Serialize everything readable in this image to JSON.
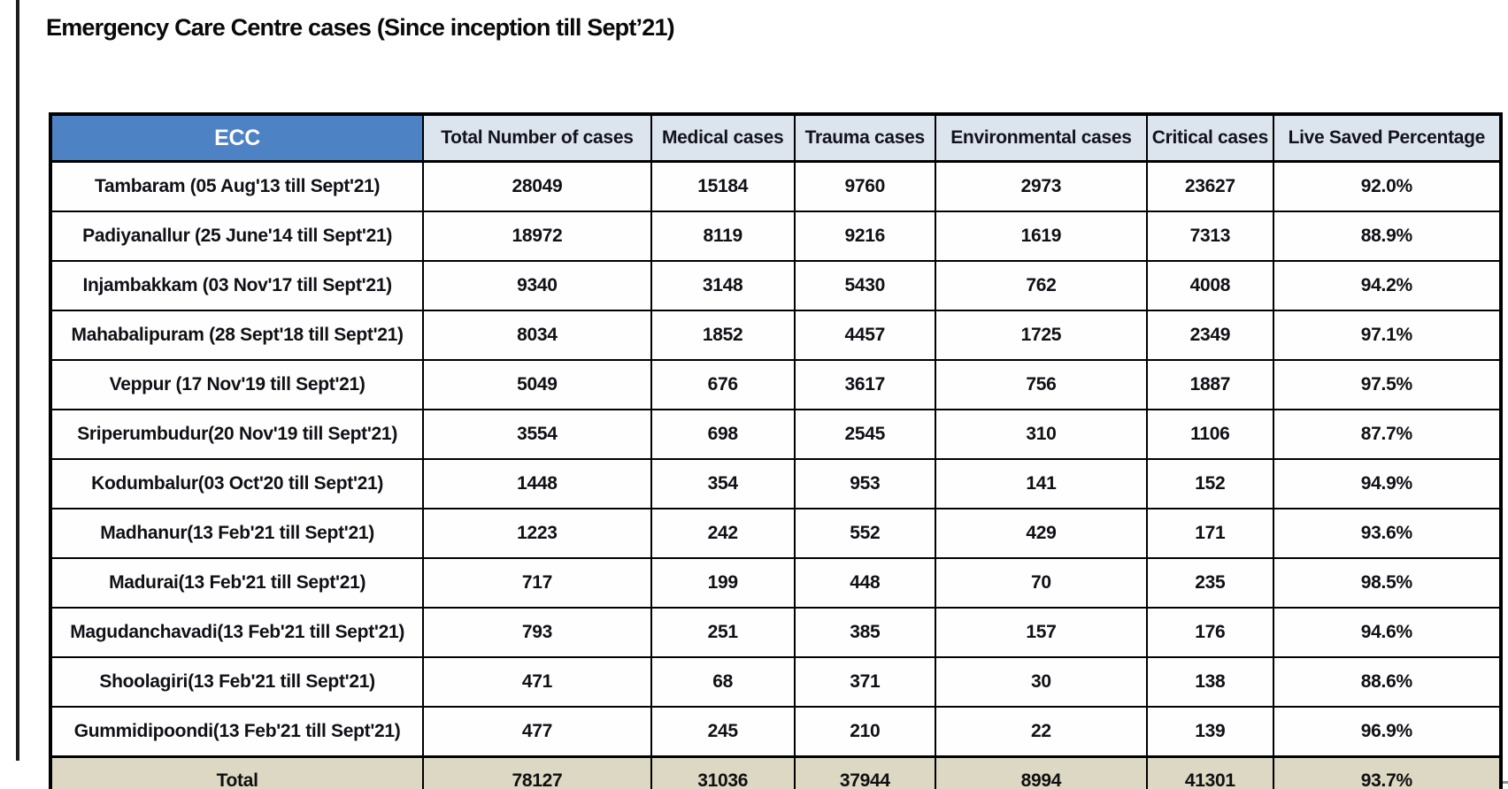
{
  "page": {
    "title": "Emergency Care Centre cases (Since inception till Sept’21)"
  },
  "table": {
    "columns": [
      "ECC",
      "Total Number of cases",
      "Medical cases",
      "Trauma cases",
      "Environmental cases",
      "Critical cases",
      "Live Saved Percentage"
    ],
    "rows": [
      {
        "ecc": "Tambaram (05 Aug'13 till Sept'21)",
        "values": [
          "28049",
          "15184",
          "9760",
          "2973",
          "23627",
          "92.0%"
        ]
      },
      {
        "ecc": "Padiyanallur (25 June'14 till Sept'21)",
        "values": [
          "18972",
          "8119",
          "9216",
          "1619",
          "7313",
          "88.9%"
        ]
      },
      {
        "ecc": "Injambakkam (03 Nov'17 till Sept'21)",
        "values": [
          "9340",
          "3148",
          "5430",
          "762",
          "4008",
          "94.2%"
        ]
      },
      {
        "ecc": "Mahabalipuram (28 Sept'18 till Sept'21)",
        "values": [
          "8034",
          "1852",
          "4457",
          "1725",
          "2349",
          "97.1%"
        ]
      },
      {
        "ecc": "Veppur (17 Nov'19 till Sept'21)",
        "values": [
          "5049",
          "676",
          "3617",
          "756",
          "1887",
          "97.5%"
        ]
      },
      {
        "ecc": "Sriperumbudur(20 Nov'19 till Sept'21)",
        "values": [
          "3554",
          "698",
          "2545",
          "310",
          "1106",
          "87.7%"
        ]
      },
      {
        "ecc": "Kodumbalur(03 Oct'20 till Sept'21)",
        "values": [
          "1448",
          "354",
          "953",
          "141",
          "152",
          "94.9%"
        ]
      },
      {
        "ecc": "Madhanur(13 Feb'21 till Sept'21)",
        "values": [
          "1223",
          "242",
          "552",
          "429",
          "171",
          "93.6%"
        ]
      },
      {
        "ecc": "Madurai(13 Feb'21 till Sept'21)",
        "values": [
          "717",
          "199",
          "448",
          "70",
          "235",
          "98.5%"
        ]
      },
      {
        "ecc": "Magudanchavadi(13 Feb'21 till Sept'21)",
        "values": [
          "793",
          "251",
          "385",
          "157",
          "176",
          "94.6%"
        ]
      },
      {
        "ecc": "Shoolagiri(13 Feb'21 till Sept'21)",
        "values": [
          "471",
          "68",
          "371",
          "30",
          "138",
          "88.6%"
        ]
      },
      {
        "ecc": "Gummidipoondi(13 Feb'21 till Sept'21)",
        "values": [
          "477",
          "245",
          "210",
          "22",
          "139",
          "96.9%"
        ]
      }
    ],
    "total": {
      "label": "Total",
      "values": [
        "78127",
        "31036",
        "37944",
        "8994",
        "41301",
        "93.7%"
      ]
    }
  },
  "colors": {
    "ecc_header_bg": "#4d82c4",
    "ecc_header_text": "#ffffff",
    "header_bg": "#dce4ee",
    "total_row_bg": "#ddd8c3",
    "border": "#000000"
  }
}
